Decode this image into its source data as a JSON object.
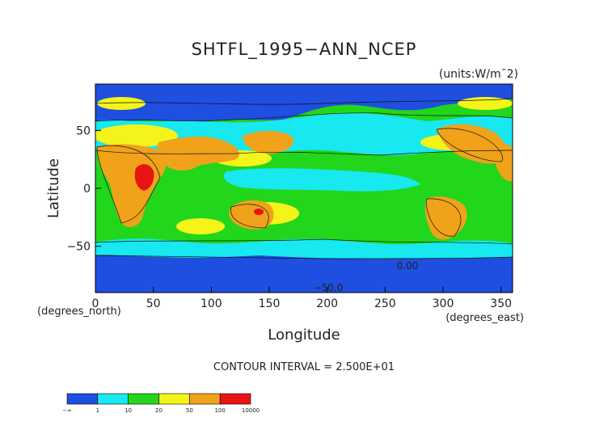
{
  "chart_data": {
    "type": "heatmap",
    "title": "SHTFL_1995−ANN_NCEP",
    "units": "(units:W/m¯2)",
    "xlabel": "Longitude",
    "ylabel": "Latitude",
    "x_unit_label": "(degrees_east)",
    "y_unit_label": "(degrees_north)",
    "xlim": [
      0,
      360
    ],
    "ylim": [
      -90,
      90
    ],
    "x_ticks": [
      0,
      50,
      100,
      150,
      200,
      250,
      300,
      350
    ],
    "y_ticks": [
      -50,
      0,
      50
    ],
    "contour_interval_text": "CONTOUR INTERVAL = 2.500E+01",
    "contour_labels": [
      "0.00",
      "−50.0"
    ],
    "colorbar": {
      "bins": [
        {
          "color": "#1e4fe0"
        },
        {
          "color": "#18e8f0"
        },
        {
          "color": "#22d61c"
        },
        {
          "color": "#f4f41a"
        },
        {
          "color": "#f0a21a"
        },
        {
          "color": "#e81414"
        }
      ],
      "tick_labels": [
        "−∞",
        "1",
        "10",
        "20",
        "50",
        "100",
        "10000"
      ]
    }
  }
}
